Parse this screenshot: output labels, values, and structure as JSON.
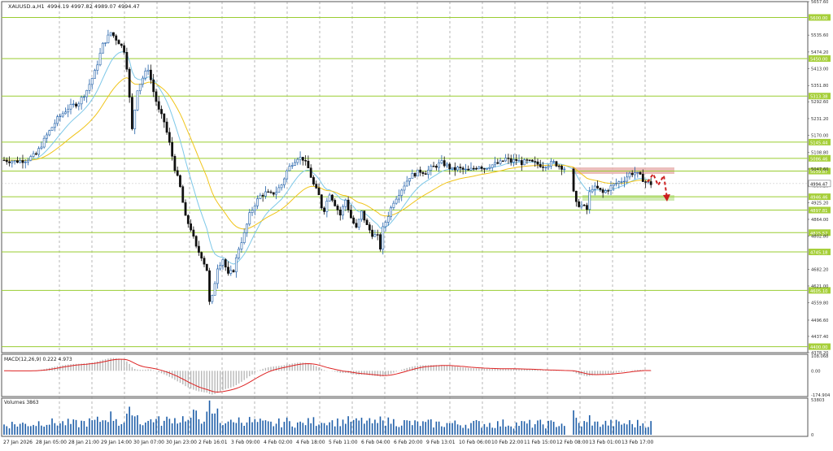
{
  "header": {
    "symbol": "XAUUSD.a,H1",
    "ohlc": "4994.19 4997.82 4989.07 4994.47"
  },
  "macd_label": "MACD(12,26,9) 0.222 4.973",
  "volume_label": "Volumes 3863",
  "colors": {
    "bull_candle": "#1e5ea8",
    "bear_candle": "#111111",
    "level_line": "#9acd32",
    "level_tag_bg": "#a6cf3a",
    "ema_fast": "#7ec8e8",
    "ema_slow": "#f0c419",
    "resistance_zone": "#e8b4b0",
    "support_zone": "#c9e8a8",
    "forecast_arrow": "#cc1f1f",
    "macd_signal": "#dd2222",
    "macd_hist": "#b8b8b8",
    "volume_bar": "#1e5ea8",
    "current_price_tag": "#ffffff"
  },
  "chart_data": [
    {
      "type": "candlestick",
      "title": "XAUUSD.a,H1",
      "ylim": [
        4378,
        5657.6
      ],
      "yticks": [
        "5657.60",
        "5535.60",
        "5474.20",
        "5413.00",
        "5351.80",
        "5292.60",
        "5231.20",
        "5170.00",
        "5108.80",
        "5047.60",
        "4986.20",
        "4925.20",
        "4864.00",
        "4802.80",
        "4682.20",
        "4621.00",
        "4559.80",
        "4496.60",
        "4437.40",
        "4378.20"
      ],
      "current_price": "4994.47",
      "levels": [
        "5600.00",
        "5450.00",
        "5313.38",
        "5145.44",
        "5086.46",
        "5039.87",
        "4946.46",
        "4897.81",
        "4815.57",
        "4745.18",
        "4605.10",
        "4400.00"
      ],
      "x_labels": [
        "27 Jan 2026",
        "28 Jan 05:00",
        "28 Jan 21:00",
        "29 Jan 14:00",
        "30 Jan 07:00",
        "30 Jan 23:00",
        "2 Feb 16:01",
        "3 Feb 09:00",
        "4 Feb 02:00",
        "4 Feb 18:00",
        "5 Feb 11:00",
        "6 Feb 04:00",
        "6 Feb 20:00",
        "9 Feb 13:01",
        "10 Feb 06:00",
        "10 Feb 22:00",
        "11 Feb 15:00",
        "12 Feb 08:00",
        "13 Feb 01:00",
        "13 Feb 17:00"
      ],
      "close_path": [
        [
          0,
          5080
        ],
        [
          4,
          5075
        ],
        [
          8,
          5080
        ],
        [
          12,
          5100
        ],
        [
          16,
          5170
        ],
        [
          20,
          5230
        ],
        [
          24,
          5270
        ],
        [
          28,
          5290
        ],
        [
          31,
          5335
        ],
        [
          34,
          5400
        ],
        [
          37,
          5500
        ],
        [
          40,
          5545
        ],
        [
          43,
          5510
        ],
        [
          45,
          5480
        ],
        [
          46,
          5420
        ],
        [
          48,
          5190
        ],
        [
          50,
          5340
        ],
        [
          52,
          5380
        ],
        [
          54,
          5415
        ],
        [
          56,
          5330
        ],
        [
          58,
          5260
        ],
        [
          60,
          5220
        ],
        [
          62,
          5140
        ],
        [
          64,
          5050
        ],
        [
          66,
          4980
        ],
        [
          68,
          4870
        ],
        [
          70,
          4830
        ],
        [
          72,
          4760
        ],
        [
          74,
          4730
        ],
        [
          76,
          4680
        ],
        [
          77,
          4560
        ],
        [
          78,
          4580
        ],
        [
          80,
          4690
        ],
        [
          82,
          4720
        ],
        [
          84,
          4660
        ],
        [
          86,
          4680
        ],
        [
          88,
          4760
        ],
        [
          90,
          4810
        ],
        [
          92,
          4880
        ],
        [
          94,
          4920
        ],
        [
          96,
          4950
        ],
        [
          98,
          4960
        ],
        [
          100,
          4955
        ],
        [
          102,
          4965
        ],
        [
          104,
          4990
        ],
        [
          106,
          5040
        ],
        [
          108,
          5070
        ],
        [
          110,
          5090
        ],
        [
          112,
          5085
        ],
        [
          114,
          5050
        ],
        [
          116,
          4990
        ],
        [
          118,
          4950
        ],
        [
          119,
          4910
        ],
        [
          120,
          4900
        ],
        [
          122,
          4960
        ],
        [
          124,
          4920
        ],
        [
          126,
          4880
        ],
        [
          128,
          4935
        ],
        [
          130,
          4870
        ],
        [
          132,
          4830
        ],
        [
          134,
          4890
        ],
        [
          136,
          4840
        ],
        [
          138,
          4810
        ],
        [
          140,
          4800
        ],
        [
          141,
          4760
        ],
        [
          142,
          4830
        ],
        [
          144,
          4880
        ],
        [
          146,
          4930
        ],
        [
          148,
          4960
        ],
        [
          150,
          4990
        ],
        [
          152,
          5020
        ],
        [
          154,
          5030
        ],
        [
          156,
          5040
        ],
        [
          158,
          5035
        ],
        [
          160,
          5050
        ],
        [
          162,
          5060
        ],
        [
          164,
          5070
        ],
        [
          166,
          5060
        ],
        [
          168,
          5045
        ],
        [
          170,
          5050
        ],
        [
          172,
          5045
        ],
        [
          174,
          5040
        ],
        [
          176,
          5050
        ],
        [
          178,
          5060
        ],
        [
          180,
          5050
        ],
        [
          182,
          5060
        ],
        [
          184,
          5065
        ],
        [
          186,
          5070
        ],
        [
          188,
          5085
        ],
        [
          190,
          5075
        ],
        [
          192,
          5080
        ],
        [
          194,
          5070
        ],
        [
          196,
          5075
        ],
        [
          198,
          5070
        ],
        [
          200,
          5065
        ],
        [
          202,
          5060
        ],
        [
          204,
          5065
        ],
        [
          206,
          5070
        ],
        [
          208,
          5060
        ],
        [
          210,
          5050
        ],
        [
          211,
          4960
        ],
        [
          212,
          4920
        ],
        [
          214,
          4915
        ],
        [
          216,
          4900
        ],
        [
          217,
          4960
        ],
        [
          218,
          4980
        ],
        [
          220,
          4975
        ],
        [
          222,
          4960
        ],
        [
          224,
          4975
        ],
        [
          226,
          4990
        ],
        [
          228,
          5000
        ],
        [
          230,
          5010
        ],
        [
          232,
          5030
        ],
        [
          234,
          5035
        ],
        [
          236,
          5020
        ],
        [
          238,
          5000
        ],
        [
          240,
          4994
        ]
      ]
    },
    {
      "type": "bar",
      "title": "MACD(12,26,9) 0.222 4.973",
      "yticks": [
        "108.068",
        "0.00",
        "-174.904"
      ],
      "ylim": [
        -174.904,
        108.068
      ]
    },
    {
      "type": "bar",
      "title": "Volumes 3863",
      "yticks": [
        "53803",
        "0"
      ],
      "ylim": [
        0,
        53803
      ]
    }
  ]
}
